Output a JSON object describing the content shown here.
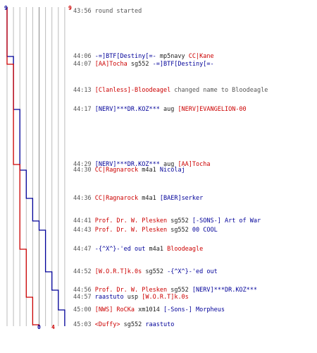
{
  "scores": {
    "blue_start": "9",
    "red_start": "9",
    "blue_end": "0",
    "red_end": "4"
  },
  "colors": {
    "blue_team": "#000099",
    "red_team": "#cc0000",
    "grid": "#bbbbbb",
    "text": "#555555"
  },
  "events": [
    {
      "time": "43:56",
      "parts": [
        {
          "text": "round started",
          "c": "gray"
        }
      ]
    },
    {
      "time": "44:06",
      "parts": [
        {
          "text": "-=]BTF[Destiny[=-",
          "c": "blue"
        },
        {
          "text": " mp5navy ",
          "c": "blk"
        },
        {
          "text": "CC|Kane",
          "c": "red"
        }
      ]
    },
    {
      "time": "44:07",
      "parts": [
        {
          "text": "[AA]Tocha",
          "c": "red"
        },
        {
          "text": " sg552 ",
          "c": "blk"
        },
        {
          "text": "-=]BTF[Destiny[=-",
          "c": "blue"
        }
      ]
    },
    {
      "time": "44:13",
      "parts": [
        {
          "text": "[Clanless]-Bloodeagel",
          "c": "red"
        },
        {
          "text": " changed name to Bloodeagle",
          "c": "gray"
        }
      ]
    },
    {
      "time": "44:17",
      "parts": [
        {
          "text": "[NERV]***DR.KOZ***",
          "c": "blue"
        },
        {
          "text": " aug ",
          "c": "blk"
        },
        {
          "text": "[NERV]EVANGELION-00",
          "c": "red"
        }
      ]
    },
    {
      "time": "44:29",
      "parts": [
        {
          "text": "[NERV]***DR.KOZ***",
          "c": "blue"
        },
        {
          "text": " aug ",
          "c": "blk"
        },
        {
          "text": "[AA]Tocha",
          "c": "red"
        }
      ]
    },
    {
      "time": "44:30",
      "parts": [
        {
          "text": "CC|Ragnarock",
          "c": "red"
        },
        {
          "text": " m4a1 ",
          "c": "blk"
        },
        {
          "text": "Nicolaj",
          "c": "blue"
        }
      ]
    },
    {
      "time": "44:36",
      "parts": [
        {
          "text": "CC|Ragnarock",
          "c": "red"
        },
        {
          "text": " m4a1 ",
          "c": "blk"
        },
        {
          "text": "[BAER]serker",
          "c": "blue"
        }
      ]
    },
    {
      "time": "44:41",
      "parts": [
        {
          "text": "Prof. Dr. W. Plesken",
          "c": "red"
        },
        {
          "text": " sg552 ",
          "c": "blk"
        },
        {
          "text": "[-SONS-] Art of War",
          "c": "blue"
        }
      ]
    },
    {
      "time": "44:43",
      "parts": [
        {
          "text": "Prof. Dr. W. Plesken",
          "c": "red"
        },
        {
          "text": " sg552 ",
          "c": "blk"
        },
        {
          "text": "00 COOL",
          "c": "blue"
        }
      ]
    },
    {
      "time": "44:47",
      "parts": [
        {
          "text": "-{^X^}-'ed out",
          "c": "blue"
        },
        {
          "text": " m4a1 ",
          "c": "blk"
        },
        {
          "text": "Bloodeagle",
          "c": "red"
        }
      ]
    },
    {
      "time": "44:52",
      "parts": [
        {
          "text": "[W.O.R.T]k.0s",
          "c": "red"
        },
        {
          "text": " sg552 ",
          "c": "blk"
        },
        {
          "text": "-{^X^}-'ed out",
          "c": "blue"
        }
      ]
    },
    {
      "time": "44:56",
      "parts": [
        {
          "text": "Prof. Dr. W. Plesken",
          "c": "red"
        },
        {
          "text": " sg552 ",
          "c": "blk"
        },
        {
          "text": "[NERV]***DR.KOZ***",
          "c": "blue"
        }
      ]
    },
    {
      "time": "44:57",
      "parts": [
        {
          "text": "raastuto",
          "c": "blue"
        },
        {
          "text": " usp ",
          "c": "blk"
        },
        {
          "text": "[W.O.R.T]k.0s",
          "c": "red"
        }
      ]
    },
    {
      "time": "45:00",
      "parts": [
        {
          "text": "[NWS] RoCKa",
          "c": "red"
        },
        {
          "text": " xm1014 ",
          "c": "blk"
        },
        {
          "text": "[-Sons-] Morpheus",
          "c": "blue"
        }
      ]
    },
    {
      "time": "45:03",
      "parts": [
        {
          "text": "<Duffy>",
          "c": "red"
        },
        {
          "text": " sg552 ",
          "c": "blk"
        },
        {
          "text": "raastuto",
          "c": "blue"
        }
      ]
    }
  ],
  "alive_counts": {
    "blue": [
      9,
      8,
      8,
      8,
      7,
      7,
      6,
      5,
      4,
      3,
      3,
      2,
      1,
      1,
      0,
      0
    ],
    "red": [
      9,
      9,
      8,
      8,
      8,
      7,
      7,
      7,
      7,
      7,
      6,
      6,
      6,
      5,
      5,
      4
    ]
  }
}
